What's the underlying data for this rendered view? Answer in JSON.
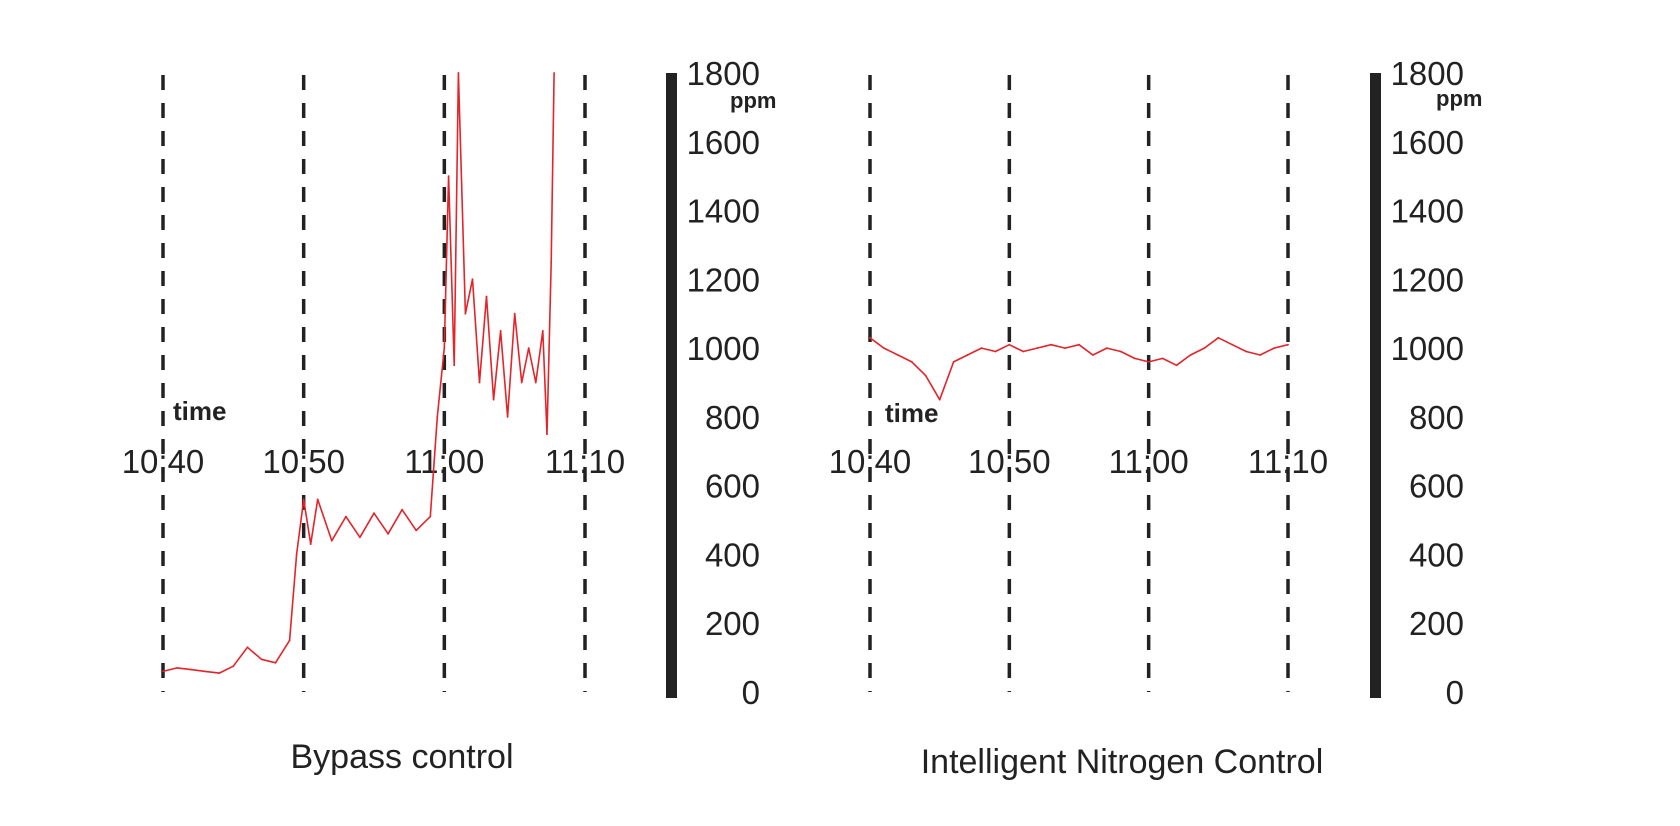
{
  "colors": {
    "series": "#e3242b",
    "axis": "#222222",
    "grid": "#222222"
  },
  "chart_data": [
    {
      "type": "line",
      "caption": "Bypass control",
      "x_axis_label": "time",
      "y_unit": "ppm",
      "ylim": [
        0,
        1800
      ],
      "yticks": [
        "0",
        "200",
        "400",
        "600",
        "800",
        "1000",
        "1200",
        "1400",
        "1600",
        "1800"
      ],
      "xlim": [
        "10:40",
        "11:10"
      ],
      "xticks": [
        "10:40",
        "10:50",
        "11:00",
        "11:10"
      ],
      "grid": "vertical dashed lines at each time tick",
      "series": [
        {
          "x": [
            "10:40",
            "10:41",
            "10:42",
            "10:43",
            "10:44",
            "10:45",
            "10:46",
            "10:47",
            "10:48",
            "10:49",
            "10:49.5",
            "10:50",
            "10:50.5",
            "10:51",
            "10:52",
            "10:53",
            "10:54",
            "10:55",
            "10:56",
            "10:57",
            "10:58",
            "10:59",
            "10:59.5",
            "11:00",
            "11:00.3",
            "11:00.7",
            "11:01",
            "11:01.5",
            "11:02",
            "11:02.5",
            "11:03",
            "11:03.5",
            "11:04",
            "11:04.5",
            "11:05",
            "11:05.5",
            "11:06",
            "11:06.5",
            "11:07",
            "11:07.3",
            "11:07.6",
            "11:07.8"
          ],
          "y": [
            60,
            70,
            65,
            60,
            55,
            75,
            130,
            95,
            85,
            150,
            400,
            560,
            430,
            560,
            440,
            510,
            450,
            520,
            460,
            530,
            470,
            510,
            800,
            1000,
            1500,
            950,
            1800,
            1100,
            1200,
            900,
            1150,
            850,
            1050,
            800,
            1100,
            900,
            1000,
            900,
            1050,
            750,
            1250,
            1800
          ]
        }
      ]
    },
    {
      "type": "line",
      "caption": "Intelligent Nitrogen Control",
      "x_axis_label": "time",
      "y_unit": "ppm",
      "ylim": [
        0,
        1800
      ],
      "yticks": [
        "0",
        "200",
        "400",
        "600",
        "800",
        "1000",
        "1200",
        "1400",
        "1600",
        "1800"
      ],
      "xlim": [
        "10:40",
        "11:10"
      ],
      "xticks": [
        "10:40",
        "10:50",
        "11:00",
        "11:10"
      ],
      "grid": "vertical dashed lines at each time tick",
      "series": [
        {
          "x": [
            "10:40",
            "10:41",
            "10:42",
            "10:43",
            "10:44",
            "10:45",
            "10:46",
            "10:47",
            "10:48",
            "10:49",
            "10:50",
            "10:51",
            "10:52",
            "10:53",
            "10:54",
            "10:55",
            "10:56",
            "10:57",
            "10:58",
            "10:59",
            "11:00",
            "11:01",
            "11:02",
            "11:03",
            "11:04",
            "11:05",
            "11:06",
            "11:07",
            "11:08",
            "11:09",
            "11:10"
          ],
          "y": [
            1030,
            1000,
            980,
            960,
            920,
            850,
            960,
            980,
            1000,
            990,
            1010,
            990,
            1000,
            1010,
            1000,
            1010,
            980,
            1000,
            990,
            970,
            960,
            970,
            950,
            980,
            1000,
            1030,
            1010,
            990,
            980,
            1000,
            1010
          ]
        }
      ]
    }
  ]
}
